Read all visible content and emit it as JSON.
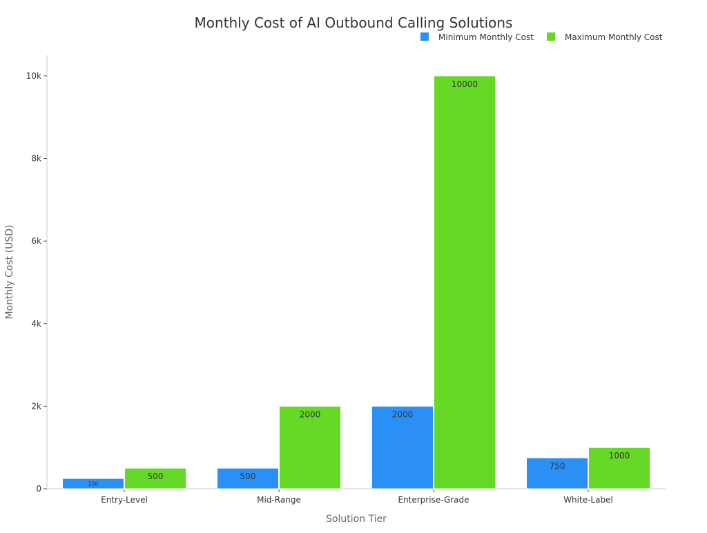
{
  "chart_data": {
    "type": "bar",
    "title": "Monthly Cost of AI Outbound Calling Solutions",
    "xlabel": "Solution Tier",
    "ylabel": "Monthly Cost (USD)",
    "categories": [
      "Entry-Level",
      "Mid-Range",
      "Enterprise-Grade",
      "White-Label"
    ],
    "series": [
      {
        "name": "Minimum Monthly Cost",
        "values": [
          250,
          500,
          2000,
          750
        ],
        "color": "#2b90f5"
      },
      {
        "name": "Maximum Monthly Cost",
        "values": [
          500,
          2000,
          10000,
          1000
        ],
        "color": "#66d926"
      }
    ],
    "data_labels": [
      [
        "250",
        "500",
        "2000",
        "750"
      ],
      [
        "500",
        "2000",
        "10000",
        "1000"
      ]
    ],
    "ylim": [
      0,
      10500
    ],
    "yticks": [
      0,
      2000,
      4000,
      6000,
      8000,
      10000
    ],
    "ytick_labels": [
      "0",
      "2k",
      "4k",
      "6k",
      "8k",
      "10k"
    ],
    "legend_position": "top-right",
    "grid": false
  }
}
